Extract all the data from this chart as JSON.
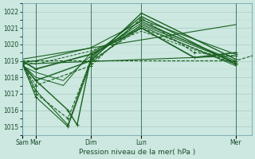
{
  "xlabel": "Pression niveau de la mer( hPa )",
  "ylim": [
    1014.5,
    1022.5
  ],
  "yticks": [
    1015,
    1016,
    1017,
    1018,
    1019,
    1020,
    1021,
    1022
  ],
  "bg_color": "#cce8e0",
  "grid_color_major": "#aaccc0",
  "grid_color_minor": "#bbddcc",
  "line_color": "#1a6020",
  "xtick_labels": [
    "Sam",
    "Mar",
    "Dim",
    "Lun",
    "Mer"
  ],
  "xtick_positions": [
    0.0,
    0.06,
    0.3,
    0.52,
    0.93
  ],
  "xlim": [
    0.0,
    1.0
  ],
  "series": [
    {
      "x": [
        0.0,
        0.06,
        0.3,
        0.52,
        0.93
      ],
      "y": [
        1018.8,
        1017.8,
        1019.0,
        1021.9,
        1019.1
      ],
      "style": "-",
      "marker": "+",
      "lw": 1.0,
      "ms": 3
    },
    {
      "x": [
        0.0,
        0.06,
        0.3,
        0.52,
        0.75,
        0.93
      ],
      "y": [
        1018.8,
        1017.5,
        1018.7,
        1021.6,
        1019.5,
        1019.3
      ],
      "style": "--",
      "marker": "+",
      "lw": 0.8,
      "ms": 3
    },
    {
      "x": [
        0.0,
        0.06,
        0.2,
        0.3,
        0.52,
        0.93
      ],
      "y": [
        1018.9,
        1017.2,
        1015.1,
        1019.1,
        1021.5,
        1019.4
      ],
      "style": "-",
      "marker": "+",
      "lw": 0.8,
      "ms": 3
    },
    {
      "x": [
        0.0,
        0.06,
        0.18,
        0.3,
        0.52,
        0.93
      ],
      "y": [
        1018.7,
        1018.3,
        1017.8,
        1019.3,
        1021.3,
        1019.0
      ],
      "style": "-",
      "marker": null,
      "lw": 0.7,
      "ms": 3
    },
    {
      "x": [
        0.0,
        0.06,
        0.2,
        0.3,
        0.52,
        0.93
      ],
      "y": [
        1018.9,
        1016.8,
        1015.0,
        1018.9,
        1021.2,
        1018.9
      ],
      "style": "-",
      "marker": "+",
      "lw": 0.8,
      "ms": 3
    },
    {
      "x": [
        0.0,
        0.06,
        0.2,
        0.3,
        0.52,
        0.93
      ],
      "y": [
        1018.8,
        1017.0,
        1015.5,
        1019.0,
        1021.0,
        1018.8
      ],
      "style": "--",
      "marker": "+",
      "lw": 0.8,
      "ms": 3
    },
    {
      "x": [
        0.0,
        0.06,
        0.18,
        0.3,
        0.52,
        0.93
      ],
      "y": [
        1018.8,
        1018.0,
        1017.5,
        1019.5,
        1021.1,
        1018.7
      ],
      "style": "-",
      "marker": null,
      "lw": 0.7,
      "ms": 3
    },
    {
      "x": [
        0.0,
        0.06,
        0.3,
        0.52,
        0.93
      ],
      "y": [
        1018.9,
        1019.0,
        1019.8,
        1021.4,
        1018.9
      ],
      "style": "-",
      "marker": "+",
      "lw": 0.8,
      "ms": 3
    },
    {
      "x": [
        0.0,
        0.06,
        0.3,
        0.52,
        0.93
      ],
      "y": [
        1019.0,
        1018.8,
        1019.6,
        1020.8,
        1018.8
      ],
      "style": "--",
      "marker": null,
      "lw": 0.7,
      "ms": 3
    },
    {
      "x": [
        0.0,
        0.06,
        0.3,
        0.52,
        0.75,
        0.93
      ],
      "y": [
        1019.0,
        1018.5,
        1019.4,
        1021.0,
        1019.2,
        1019.5
      ],
      "style": "-",
      "marker": "+",
      "lw": 1.2,
      "ms": 3
    },
    {
      "x": [
        0.0,
        0.93
      ],
      "y": [
        1018.8,
        1019.3
      ],
      "style": "-",
      "marker": null,
      "lw": 0.8,
      "ms": 0
    },
    {
      "x": [
        0.0,
        0.93
      ],
      "y": [
        1019.1,
        1021.2
      ],
      "style": "-",
      "marker": null,
      "lw": 0.8,
      "ms": 0
    },
    {
      "x": [
        0.0,
        0.06,
        0.2,
        0.24,
        0.3,
        0.52,
        0.93
      ],
      "y": [
        1018.8,
        1017.8,
        1016.0,
        1015.1,
        1019.2,
        1021.7,
        1018.8
      ],
      "style": "-",
      "marker": "+",
      "lw": 1.0,
      "ms": 3
    },
    {
      "x": [
        0.0,
        0.93,
        1.0
      ],
      "y": [
        1019.0,
        1019.0,
        1019.3
      ],
      "style": "--",
      "marker": "+",
      "lw": 0.8,
      "ms": 3
    }
  ]
}
